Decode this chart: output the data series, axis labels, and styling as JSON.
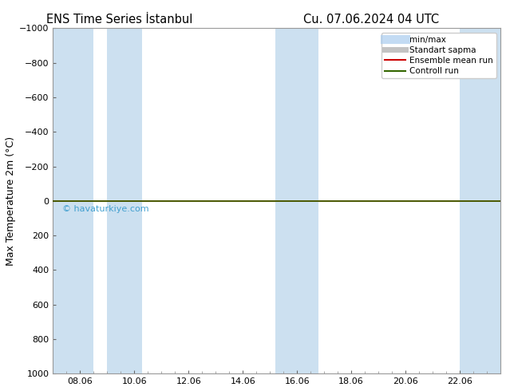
{
  "title": "ENS Time Series İstanbul",
  "title2": "Cu. 07.06.2024 04 UTC",
  "ylabel": "Max Temperature 2m (°C)",
  "ylim_top": -1000,
  "ylim_bottom": 1000,
  "yticks": [
    -1000,
    -800,
    -600,
    -400,
    -200,
    0,
    200,
    400,
    600,
    800,
    1000
  ],
  "x_ticklabels": [
    "08.06",
    "10.06",
    "12.06",
    "14.06",
    "16.06",
    "18.06",
    "20.06",
    "22.06"
  ],
  "x_tick_positions": [
    1,
    3,
    5,
    7,
    9,
    11,
    13,
    15
  ],
  "xlim": [
    0,
    16.5
  ],
  "shade_bands": [
    [
      0.0,
      1.5
    ],
    [
      2.0,
      3.3
    ],
    [
      8.2,
      9.8
    ],
    [
      15.0,
      16.5
    ]
  ],
  "shade_color": "#cce0f0",
  "green_line_color": "#336600",
  "red_line_color": "#cc0000",
  "bg_color": "#ffffff",
  "watermark": "© havaturkiye.com",
  "watermark_color": "#3399cc",
  "legend_labels": [
    "min/max",
    "Standart sapma",
    "Ensemble mean run",
    "Controll run"
  ],
  "legend_line_colors": [
    "#aaccee",
    "#aaaaaa",
    "#cc0000",
    "#336600"
  ],
  "title_fontsize": 10.5,
  "ylabel_fontsize": 9,
  "tick_fontsize": 8,
  "legend_fontsize": 7.5
}
